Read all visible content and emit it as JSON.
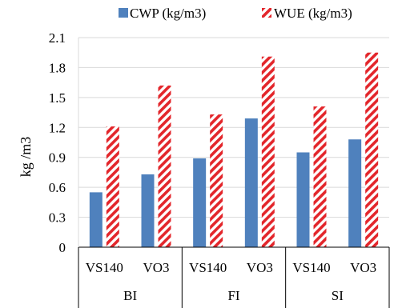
{
  "chart_data": {
    "type": "bar",
    "ylabel": "kg /m3",
    "ylim": [
      0,
      2.1
    ],
    "yticks": [
      "0",
      "0.3",
      "0.6",
      "0.9",
      "1.2",
      "1.5",
      "1.8",
      "2.1"
    ],
    "ytick_values": [
      0,
      0.3,
      0.6,
      0.9,
      1.2,
      1.5,
      1.8,
      2.1
    ],
    "grid": true,
    "legend_position": "top",
    "groups": [
      "BI",
      "FI",
      "SI"
    ],
    "categories": [
      "VS140",
      "VO3",
      "VS140",
      "VO3",
      "VS140",
      "VO3"
    ],
    "series": [
      {
        "name": "CWP (kg/m3)",
        "color": "#4f81bd",
        "pattern": "solid",
        "values": [
          0.55,
          0.73,
          0.89,
          1.29,
          0.95,
          1.08
        ]
      },
      {
        "name": "WUE (kg/m3)",
        "color": "#e3262b",
        "pattern": "diagonal-stripes",
        "values": [
          1.21,
          1.62,
          1.33,
          1.91,
          1.41,
          1.95
        ]
      }
    ]
  }
}
